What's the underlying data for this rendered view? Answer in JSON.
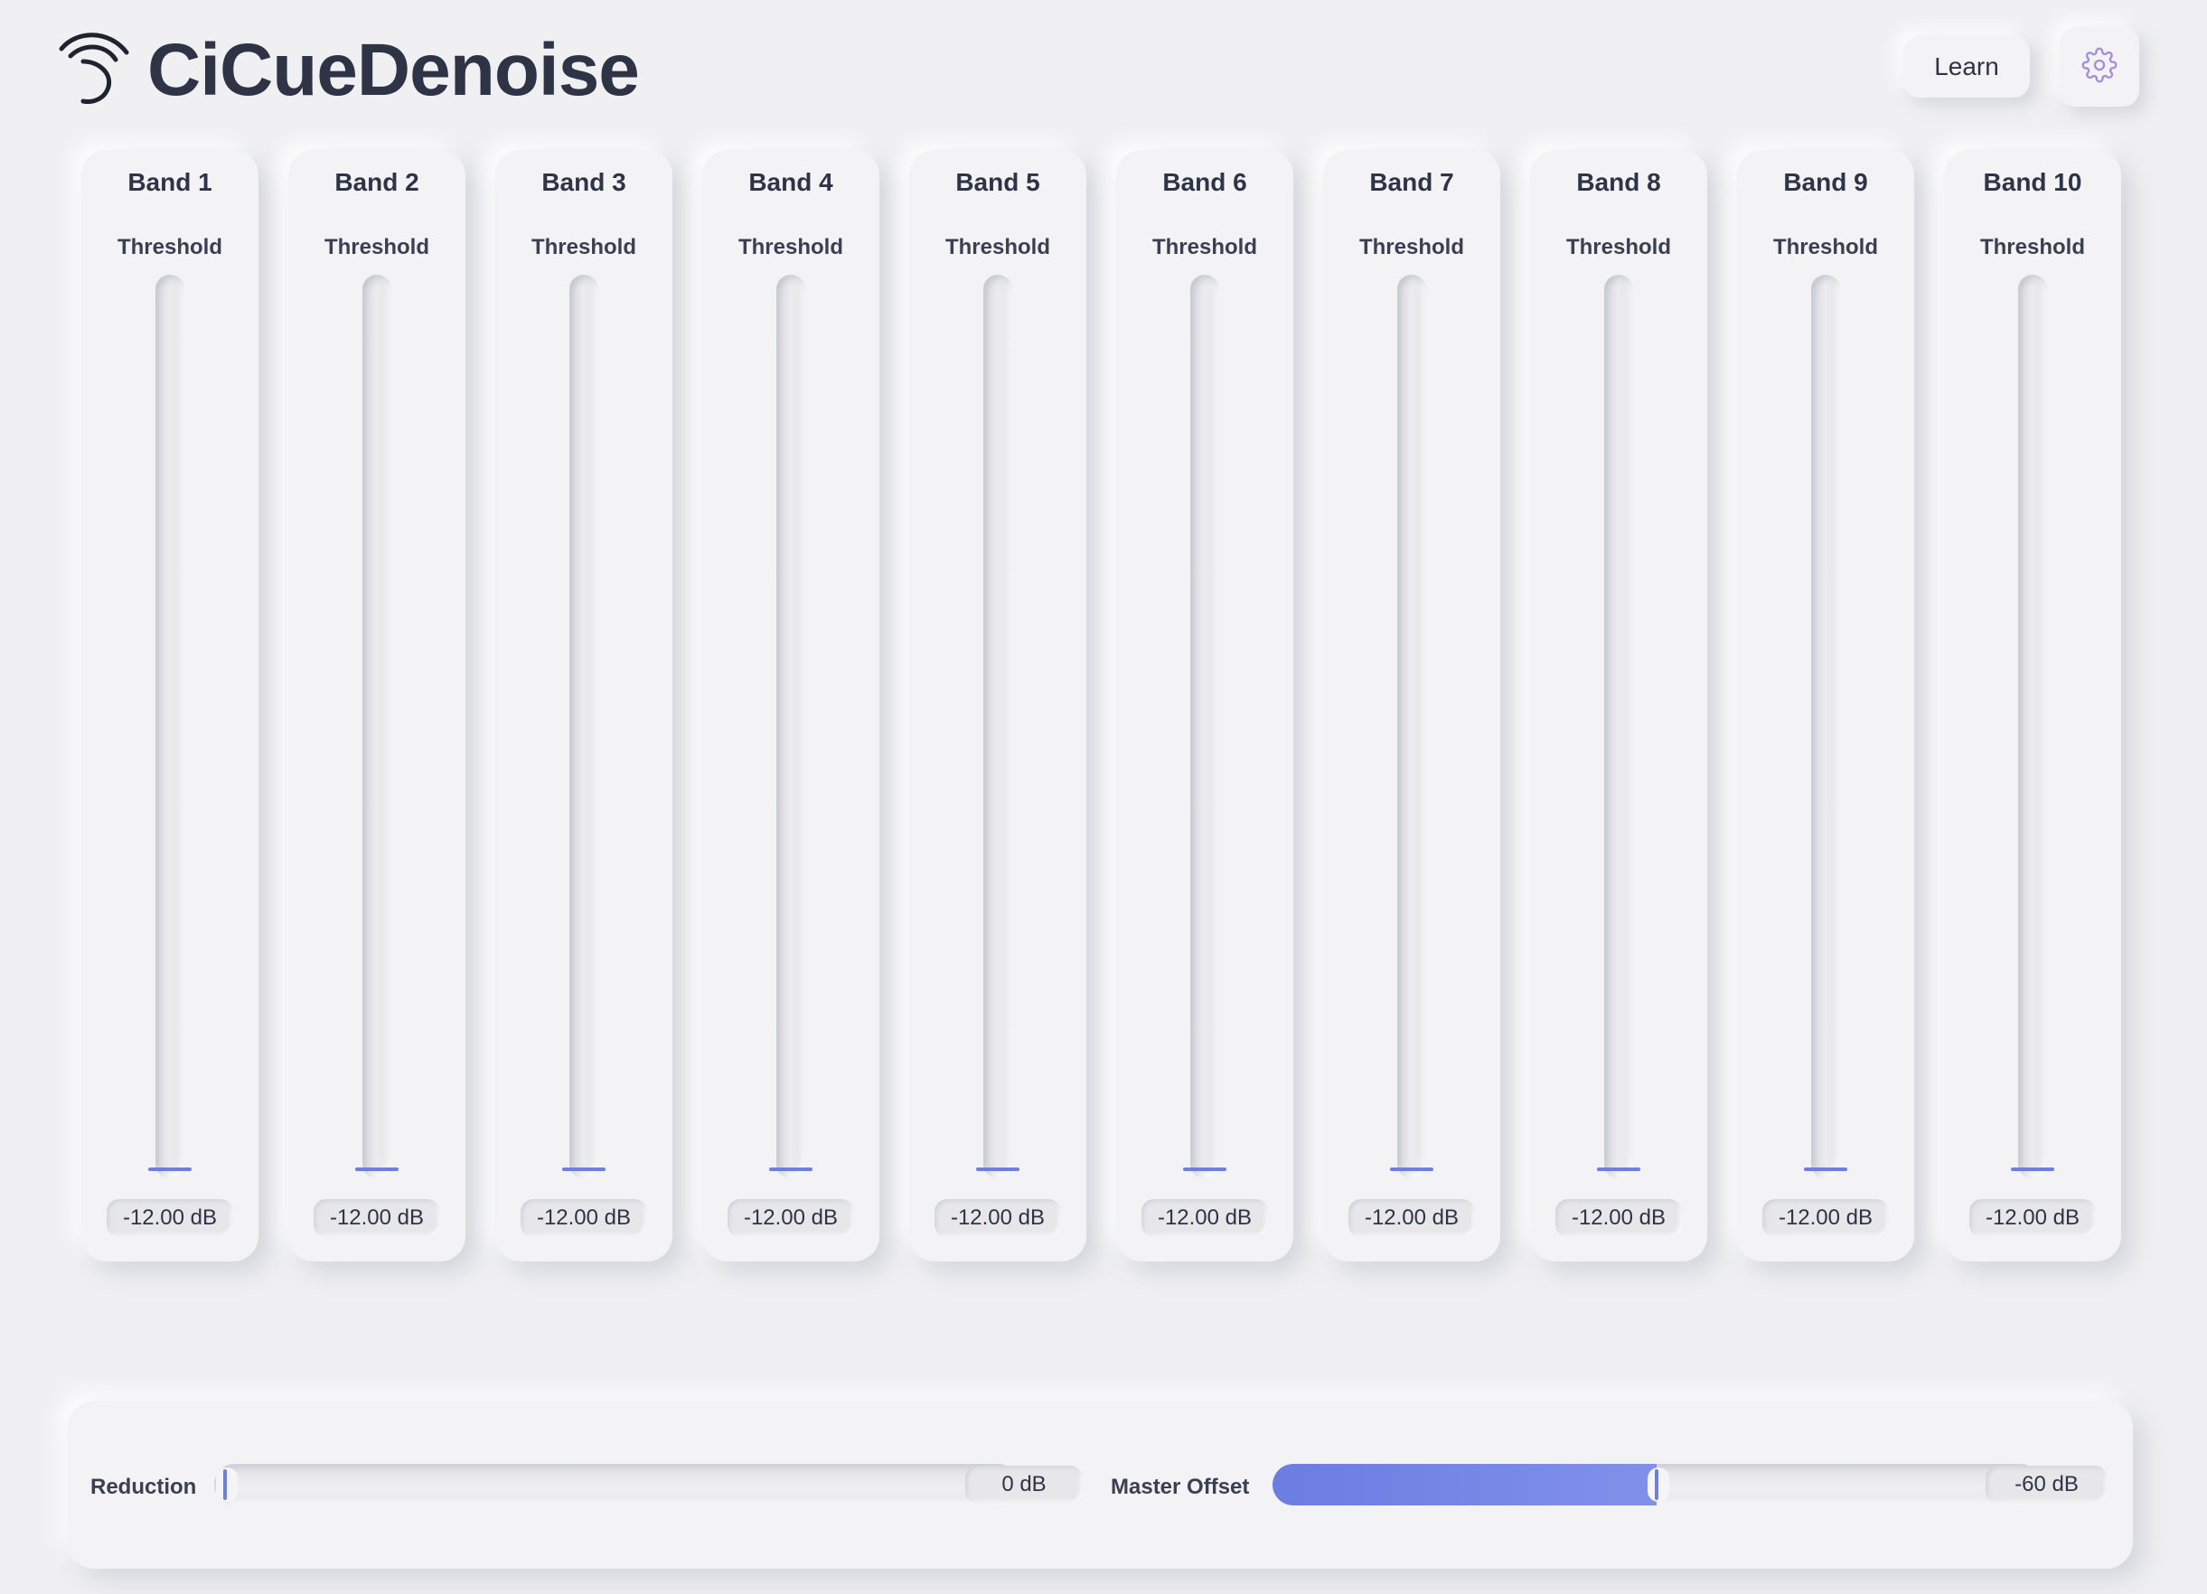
{
  "app": {
    "name": "CiCueDenoise",
    "logo_icon": "wave-logo-icon",
    "accent": "#6f7fe0"
  },
  "header": {
    "learn_label": "Learn",
    "settings_icon": "gear-icon"
  },
  "bands": [
    {
      "title": "Band 1",
      "param": "Threshold",
      "value": "-12.00 dB",
      "level": 0.0
    },
    {
      "title": "Band 2",
      "param": "Threshold",
      "value": "-12.00 dB",
      "level": 0.0
    },
    {
      "title": "Band 3",
      "param": "Threshold",
      "value": "-12.00 dB",
      "level": 0.0
    },
    {
      "title": "Band 4",
      "param": "Threshold",
      "value": "-12.00 dB",
      "level": 0.0
    },
    {
      "title": "Band 5",
      "param": "Threshold",
      "value": "-12.00 dB",
      "level": 0.0
    },
    {
      "title": "Band 6",
      "param": "Threshold",
      "value": "-12.00 dB",
      "level": 0.0
    },
    {
      "title": "Band 7",
      "param": "Threshold",
      "value": "-12.00 dB",
      "level": 0.0
    },
    {
      "title": "Band 8",
      "param": "Threshold",
      "value": "-12.00 dB",
      "level": 0.0
    },
    {
      "title": "Band 9",
      "param": "Threshold",
      "value": "-12.00 dB",
      "level": 0.0
    },
    {
      "title": "Band 10",
      "param": "Threshold",
      "value": "-12.00 dB",
      "level": 0.0
    }
  ],
  "bottom": {
    "reduction": {
      "label": "Reduction",
      "value": "0 dB",
      "level": 0.0
    },
    "master_offset": {
      "label": "Master Offset",
      "value": "-60 dB",
      "level": 0.5
    }
  }
}
